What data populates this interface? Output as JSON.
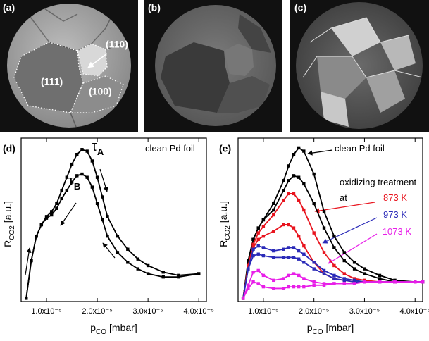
{
  "images": [
    {
      "label": "(a)",
      "regions": [
        "(110)",
        "(111)",
        "(100)"
      ]
    },
    {
      "label": "(b)"
    },
    {
      "label": "(c)"
    }
  ],
  "chart_data": [
    {
      "type": "line",
      "label": "(d)",
      "x_label": "p",
      "x_label_sub": "CO",
      "x_label_unit": "[mbar]",
      "y_label": "R",
      "y_label_sub": "CO2",
      "y_label_unit": "[a.u.]",
      "xlim": [
        5e-06,
        4.15e-05
      ],
      "ylim": [
        0,
        1
      ],
      "xticks": [
        {
          "value": 1e-05,
          "label": "1.0x10⁻⁵"
        },
        {
          "value": 2e-05,
          "label": "2.0x10⁻⁵"
        },
        {
          "value": 3e-05,
          "label": "3.0x10⁻⁵"
        },
        {
          "value": 4e-05,
          "label": "4.0x10⁻⁵"
        }
      ],
      "annotations": [
        {
          "text": "clean Pd foil"
        },
        {
          "text": "τ",
          "sub": "A"
        },
        {
          "text": "τ",
          "sub": "B"
        }
      ],
      "x": [
        6e-06,
        7e-06,
        8e-06,
        9e-06,
        1e-05,
        1.1e-05,
        1.2e-05,
        1.3e-05,
        1.4e-05,
        1.5e-05,
        1.6e-05,
        1.7e-05,
        1.8e-05,
        1.9e-05,
        2e-05,
        2.1e-05,
        2.2e-05,
        2.4e-05,
        2.6e-05,
        2.8e-05,
        3e-05,
        3.3e-05,
        3.6e-05,
        4e-05
      ],
      "series": [
        {
          "color": "#000000",
          "values": [
            0.02,
            0.25,
            0.4,
            0.47,
            0.52,
            0.55,
            0.6,
            0.68,
            0.76,
            0.84,
            0.9,
            0.93,
            0.92,
            0.86,
            0.76,
            0.64,
            0.52,
            0.4,
            0.32,
            0.26,
            0.22,
            0.18,
            0.16,
            0.17
          ]
        },
        {
          "color": "#000000",
          "values": [
            0.02,
            0.25,
            0.4,
            0.47,
            0.51,
            0.53,
            0.57,
            0.63,
            0.68,
            0.73,
            0.77,
            0.78,
            0.76,
            0.7,
            0.6,
            0.5,
            0.4,
            0.3,
            0.24,
            0.2,
            0.17,
            0.15,
            0.15,
            0.17
          ]
        }
      ]
    },
    {
      "type": "line",
      "label": "(e)",
      "x_label": "p",
      "x_label_sub": "CO",
      "x_label_unit": "[mbar]",
      "y_label": "R",
      "y_label_sub": "CO2",
      "y_label_unit": "[a.u.]",
      "xlim": [
        5e-06,
        4.15e-05
      ],
      "ylim": [
        0,
        1
      ],
      "xticks": [
        {
          "value": 1e-05,
          "label": "1.0x10⁻⁵"
        },
        {
          "value": 2e-05,
          "label": "2.0x10⁻⁵"
        },
        {
          "value": 3e-05,
          "label": "3.0x10⁻⁵"
        },
        {
          "value": 4e-05,
          "label": "4.0x10⁻⁵"
        }
      ],
      "annotations": [
        {
          "text": "clean Pd foil"
        },
        {
          "text": "oxidizing treatment"
        },
        {
          "text": "at"
        },
        {
          "text": "873 K",
          "color": "#e8141e"
        },
        {
          "text": "973 K",
          "color": "#2a2ab8"
        },
        {
          "text": "1073 K",
          "color": "#e81ee8"
        }
      ],
      "x": [
        6e-06,
        7e-06,
        8e-06,
        9e-06,
        1e-05,
        1.2e-05,
        1.4e-05,
        1.5e-05,
        1.6e-05,
        1.7e-05,
        1.8e-05,
        2e-05,
        2.2e-05,
        2.4e-05,
        2.6e-05,
        2.8e-05,
        3e-05,
        3.3e-05,
        3.6e-05,
        4e-05,
        4.15e-05
      ],
      "series": [
        {
          "color": "#000000",
          "values": [
            0.02,
            0.25,
            0.38,
            0.45,
            0.5,
            0.6,
            0.74,
            0.83,
            0.9,
            0.94,
            0.92,
            0.78,
            0.55,
            0.4,
            0.3,
            0.24,
            0.2,
            0.16,
            0.13,
            0.12,
            0.12
          ]
        },
        {
          "color": "#000000",
          "values": [
            0.02,
            0.25,
            0.38,
            0.45,
            0.5,
            0.56,
            0.68,
            0.74,
            0.77,
            0.76,
            0.72,
            0.6,
            0.45,
            0.33,
            0.25,
            0.2,
            0.17,
            0.14,
            0.12,
            0.12,
            0.12
          ]
        },
        {
          "color": "#e8141e",
          "values": [
            0.02,
            0.22,
            0.35,
            0.42,
            0.46,
            0.53,
            0.62,
            0.66,
            0.66,
            0.62,
            0.56,
            0.42,
            0.3,
            0.22,
            0.17,
            0.14,
            0.13,
            0.12,
            0.12,
            0.12,
            0.12
          ]
        },
        {
          "color": "#e8141e",
          "values": [
            0.02,
            0.22,
            0.33,
            0.38,
            0.4,
            0.43,
            0.47,
            0.47,
            0.45,
            0.4,
            0.34,
            0.24,
            0.17,
            0.14,
            0.13,
            0.12,
            0.12,
            0.12,
            0.12,
            0.12,
            0.12
          ]
        },
        {
          "color": "#2a2ab8",
          "values": [
            0.02,
            0.2,
            0.32,
            0.34,
            0.33,
            0.31,
            0.32,
            0.33,
            0.33,
            0.31,
            0.29,
            0.24,
            0.19,
            0.16,
            0.14,
            0.13,
            0.12,
            0.12,
            0.12,
            0.12,
            0.12
          ]
        },
        {
          "color": "#2a2ab8",
          "values": [
            0.02,
            0.2,
            0.28,
            0.29,
            0.28,
            0.27,
            0.27,
            0.27,
            0.27,
            0.26,
            0.24,
            0.2,
            0.17,
            0.14,
            0.13,
            0.12,
            0.12,
            0.12,
            0.12,
            0.12,
            0.12
          ]
        },
        {
          "color": "#e81ee8",
          "values": [
            0.02,
            0.1,
            0.18,
            0.19,
            0.16,
            0.13,
            0.14,
            0.16,
            0.17,
            0.16,
            0.14,
            0.12,
            0.11,
            0.11,
            0.11,
            0.11,
            0.12,
            0.12,
            0.12,
            0.12,
            0.12
          ]
        },
        {
          "color": "#e81ee8",
          "values": [
            0.02,
            0.08,
            0.12,
            0.11,
            0.09,
            0.08,
            0.08,
            0.09,
            0.09,
            0.09,
            0.09,
            0.1,
            0.1,
            0.11,
            0.11,
            0.11,
            0.12,
            0.12,
            0.12,
            0.12,
            0.12
          ]
        }
      ]
    }
  ]
}
